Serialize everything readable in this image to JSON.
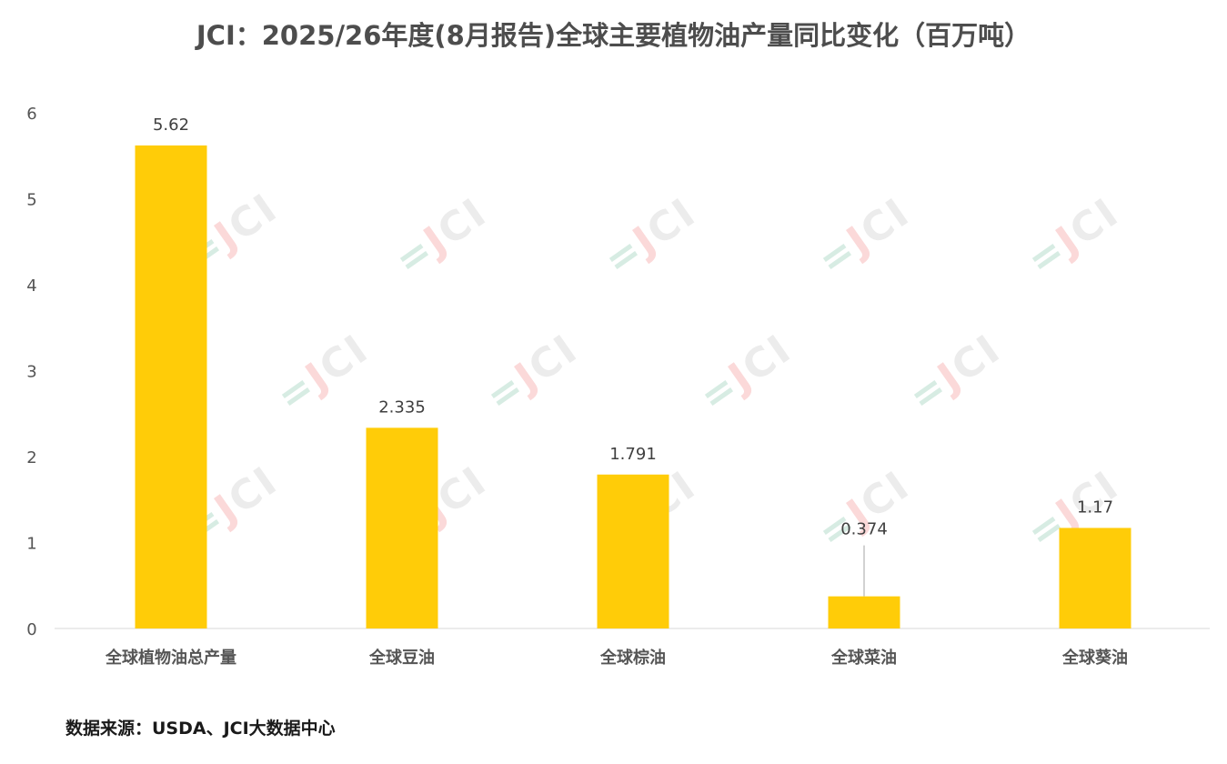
{
  "chart_data": {
    "type": "bar",
    "title": "JCI：2025/26年度(8月报告)全球主要植物油产量同比变化（百万吨）",
    "categories": [
      "全球植物油总产量",
      "全球豆油",
      "全球棕油",
      "全球菜油",
      "全球葵油"
    ],
    "values": [
      5.62,
      2.335,
      1.791,
      0.374,
      1.17
    ],
    "data_labels": [
      "5.62",
      "2.335",
      "1.791",
      "0.374",
      "1.17"
    ],
    "y_ticks": [
      "0",
      "1",
      "2",
      "3",
      "4",
      "5",
      "6"
    ],
    "ylim": [
      0,
      6
    ],
    "xlabel": "",
    "ylabel": "",
    "grid": false,
    "legend": "none",
    "bar_color": "#FFCC08"
  },
  "source_note": "数据来源：USDA、JCI大数据中心",
  "watermark": "JCI"
}
